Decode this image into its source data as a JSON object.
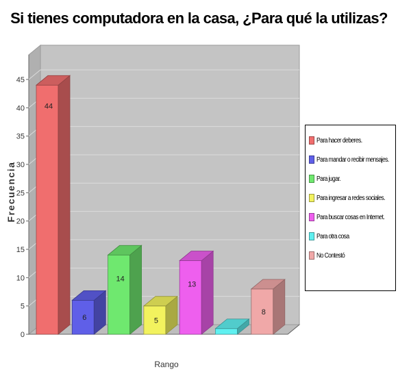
{
  "chart_data": {
    "type": "bar",
    "title": "Si tienes computadora en la casa, ¿Para qué la utilizas?",
    "xlabel": "Rango",
    "ylabel": "Frecuencia",
    "ylim": [
      0,
      45
    ],
    "yticks": [
      "0",
      "5",
      "10",
      "15",
      "20",
      "25",
      "30",
      "35",
      "40",
      "45"
    ],
    "grid": true,
    "legend_position": "right",
    "series": [
      {
        "name": "Para hacer deberes.",
        "value": 44,
        "label": "44",
        "color": "#f06e6e"
      },
      {
        "name": "Para mandar o recibir mensajes.",
        "value": 6,
        "label": "6",
        "color": "#5f5fe8"
      },
      {
        "name": "Para jugar.",
        "value": 14,
        "label": "14",
        "color": "#6fe86f"
      },
      {
        "name": "Para ingresar a redes sociales.",
        "value": 5,
        "label": "5",
        "color": "#f2f25e"
      },
      {
        "name": "Para buscar cosas en Internet.",
        "value": 13,
        "label": "13",
        "color": "#ee5fee"
      },
      {
        "name": "Para otra cosa",
        "value": 1,
        "label": "",
        "color": "#5ff0f0"
      },
      {
        "name": "No Contestó",
        "value": 8,
        "label": "8",
        "color": "#f0a8a8"
      }
    ]
  }
}
